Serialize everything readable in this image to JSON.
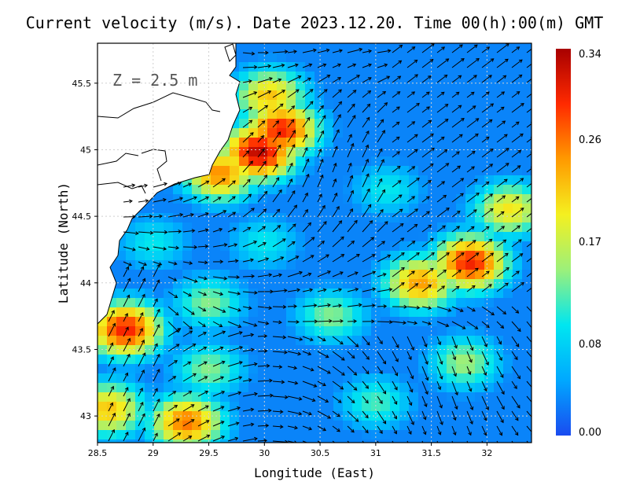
{
  "title": "Current velocity (m/s). Date 2023.12.20. Time 00(h):00(m) GMT",
  "depth_label": "Z = 2.5 m",
  "chart_data": {
    "type": "heatmap",
    "title": "Current velocity (m/s). Date 2023.12.20. Time 00(h):00(m) GMT",
    "xlabel": "Longitude (East)",
    "ylabel": "Latitude (North)",
    "xlim": [
      28.5,
      32.4
    ],
    "ylim": [
      42.8,
      45.8
    ],
    "x_ticks": [
      "28.5",
      "29",
      "29.5",
      "30",
      "30.5",
      "31",
      "31.5",
      "32"
    ],
    "y_ticks": [
      "43",
      "43.5",
      "44",
      "44.5",
      "45",
      "45.5"
    ],
    "x_tick_values": [
      28.5,
      29,
      29.5,
      30,
      30.5,
      31,
      31.5,
      32
    ],
    "y_tick_values": [
      43,
      43.5,
      44,
      44.5,
      45,
      45.5
    ],
    "grid": true,
    "colorbar": {
      "ticks": [
        "0.34",
        "0.26",
        "0.17",
        "0.08",
        "0.00"
      ],
      "tick_values": [
        0.34,
        0.26,
        0.17,
        0.08,
        0.0
      ],
      "min": 0.0,
      "max": 0.34,
      "colors": [
        "#1a4bf0",
        "#00a8ff",
        "#00e6f0",
        "#9cf07a",
        "#f4f020",
        "#ff9a00",
        "#ff2a00",
        "#a80000"
      ]
    },
    "land_color": "#ffffff",
    "coast_color": "#000000",
    "speed_features": [
      {
        "lon": 29.95,
        "lat": 44.98,
        "peak": 0.33
      },
      {
        "lon": 30.15,
        "lat": 45.15,
        "peak": 0.3
      },
      {
        "lon": 30.05,
        "lat": 45.4,
        "peak": 0.22
      },
      {
        "lon": 29.6,
        "lat": 44.82,
        "peak": 0.25
      },
      {
        "lon": 28.75,
        "lat": 43.65,
        "peak": 0.3
      },
      {
        "lon": 31.85,
        "lat": 44.15,
        "peak": 0.3
      },
      {
        "lon": 31.4,
        "lat": 44.0,
        "peak": 0.24
      },
      {
        "lon": 32.2,
        "lat": 44.55,
        "peak": 0.2
      },
      {
        "lon": 29.3,
        "lat": 42.95,
        "peak": 0.26
      },
      {
        "lon": 28.6,
        "lat": 43.05,
        "peak": 0.22
      },
      {
        "lon": 29.5,
        "lat": 43.35,
        "peak": 0.14
      },
      {
        "lon": 30.6,
        "lat": 43.75,
        "peak": 0.14
      },
      {
        "lon": 29.5,
        "lat": 43.85,
        "peak": 0.14
      },
      {
        "lon": 30.0,
        "lat": 44.3,
        "peak": 0.1
      },
      {
        "lon": 31.0,
        "lat": 43.1,
        "peak": 0.12
      },
      {
        "lon": 31.8,
        "lat": 43.4,
        "peak": 0.15
      },
      {
        "lon": 31.1,
        "lat": 44.7,
        "peak": 0.1
      },
      {
        "lon": 29.0,
        "lat": 44.3,
        "peak": 0.1
      }
    ]
  }
}
